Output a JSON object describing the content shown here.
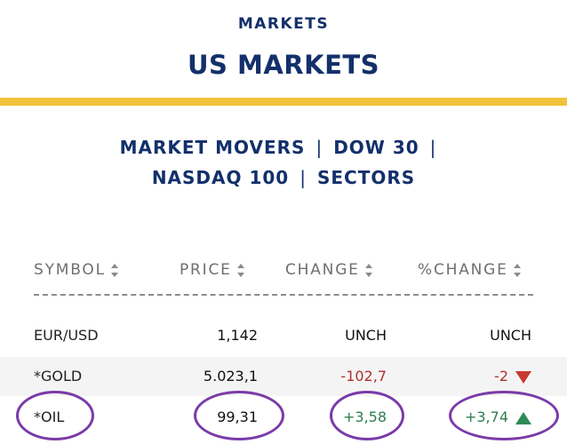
{
  "header": {
    "eyebrow": "MARKETS",
    "title": "US MARKETS"
  },
  "nav": {
    "items": [
      "MARKET MOVERS",
      "DOW 30",
      "NASDAQ 100",
      "SECTORS"
    ],
    "separator": "|"
  },
  "table": {
    "columns": [
      "SYMBOL",
      "PRICE",
      "CHANGE",
      "%CHANGE"
    ],
    "rows": [
      {
        "symbol": "EUR/USD",
        "price": "1,142",
        "change": "UNCH",
        "pct_change": "UNCH",
        "trend": "neutral"
      },
      {
        "symbol": "*GOLD",
        "price": "5.023,1",
        "change": "-102,7",
        "pct_change": "-2",
        "trend": "down"
      },
      {
        "symbol": "*OIL",
        "price": "99,31",
        "change": "+3,58",
        "pct_change": "+3,74",
        "trend": "up"
      }
    ]
  },
  "colors": {
    "brand_navy": "#13306b",
    "accent_gold": "#f2c23a",
    "negative": "#b03030",
    "positive": "#2e7d4e",
    "annotation_circle": "#7a3aa8"
  },
  "icons": {
    "sort": "sort-arrows-icon",
    "down": "triangle-down-icon",
    "up": "triangle-up-icon"
  }
}
